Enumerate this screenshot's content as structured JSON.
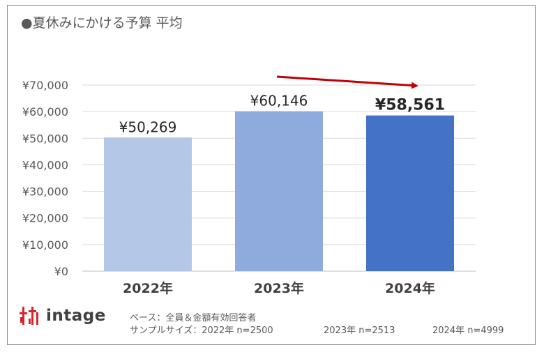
{
  "chart_data": {
    "type": "bar",
    "title": "●夏休みにかける予算 平均",
    "categories": [
      "2022年",
      "2023年",
      "2024年"
    ],
    "values": [
      50269,
      60146,
      58561
    ],
    "value_labels": [
      "¥50,269",
      "¥60,146",
      "¥58,561"
    ],
    "bar_colors": [
      "#b4c7e7",
      "#8faadc",
      "#4472c4"
    ],
    "yticks": [
      0,
      10000,
      20000,
      30000,
      40000,
      50000,
      60000,
      70000
    ],
    "ytick_labels": [
      "¥0",
      "¥10,000",
      "¥20,000",
      "¥30,000",
      "¥40,000",
      "¥50,000",
      "¥60,000",
      "¥70,000"
    ],
    "ylim": [
      0,
      70000
    ],
    "grid": true,
    "annotation": "arrow-trend-down",
    "arrow_color": "#c00000"
  },
  "logo": {
    "text": "intage",
    "icon": "intage-logo-icon",
    "color": "#d9252a"
  },
  "notes": {
    "base": "ベース：全員＆金額有効回答者",
    "sample_prefix": "サンプルサイズ：2022年 n=2500",
    "sample_2023": "2023年 n=2513",
    "sample_2024": "2024年 n=4999"
  }
}
